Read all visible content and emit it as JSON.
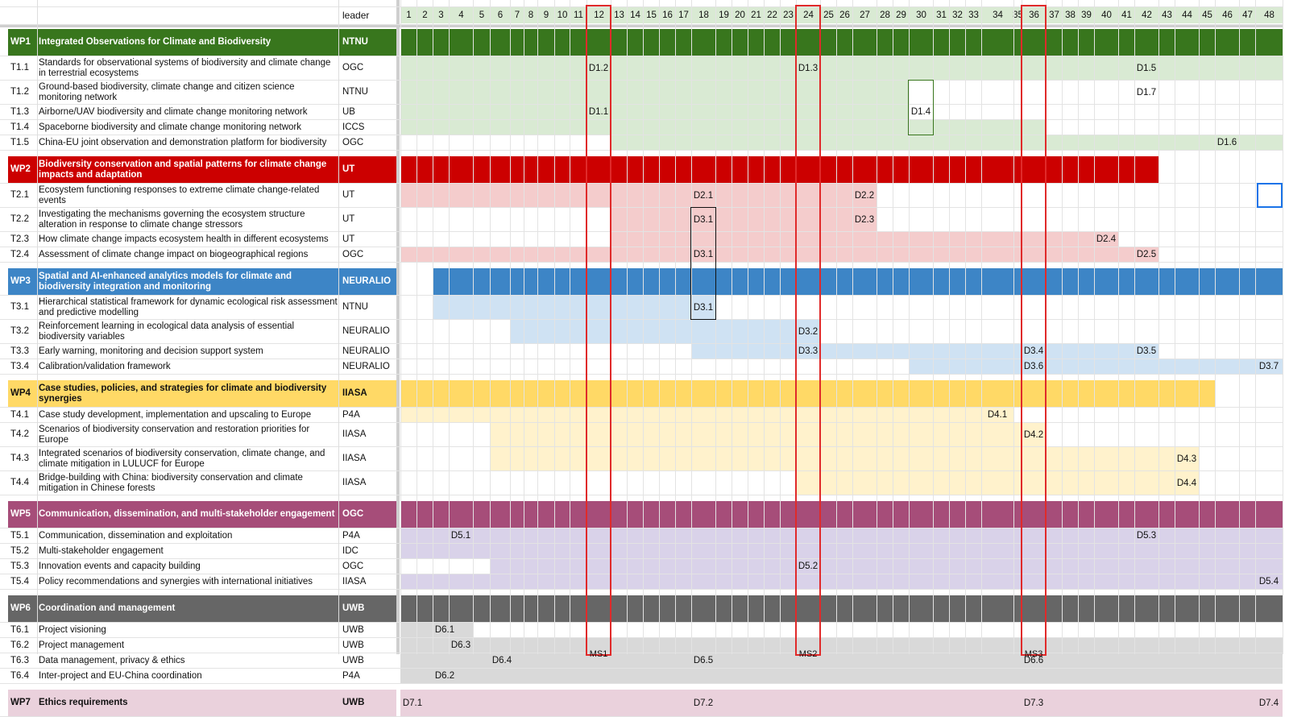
{
  "header": {
    "leader_label": "leader"
  },
  "months": [
    1,
    2,
    3,
    4,
    5,
    6,
    7,
    8,
    9,
    10,
    11,
    12,
    13,
    14,
    15,
    16,
    17,
    18,
    19,
    20,
    21,
    22,
    23,
    24,
    25,
    26,
    27,
    28,
    29,
    30,
    31,
    32,
    33,
    34,
    35,
    36,
    37,
    38,
    39,
    40,
    41,
    42,
    43,
    44,
    45,
    46,
    47,
    48
  ],
  "colors": {
    "WP1": {
      "header": "#38761d",
      "light": "#d9ead3"
    },
    "WP2": {
      "header": "#cc0000",
      "light": "#f4cccc"
    },
    "WP3": {
      "header": "#3d85c6",
      "light": "#cfe2f3"
    },
    "WP4": {
      "header": "#ffd966",
      "light": "#fff2cc"
    },
    "WP5": {
      "header": "#a64d79",
      "light": "#d9d2e9"
    },
    "WP6": {
      "header": "#666666",
      "light": "#d9d9d9"
    },
    "WP7": {
      "header": "#ead1dc",
      "light": "#ead1dc"
    }
  },
  "workpackages": [
    {
      "code": "WP1",
      "title": "Integrated Observations for Climate and Biodiversity",
      "leader": "NTNU",
      "start": 1,
      "end": 48,
      "tasks": [
        {
          "code": "T1.1",
          "title": "Standards for observational systems of biodiversity and climate change in terrestrial ecosystems",
          "leader": "OGC",
          "start": 1,
          "end": 48,
          "deliverables": [
            {
              "id": "D1.2",
              "month": 12
            },
            {
              "id": "D1.3",
              "month": 24
            },
            {
              "id": "D1.5",
              "month": 42
            }
          ]
        },
        {
          "code": "T1.2",
          "title": "Ground-based biodiversity, climate change and citizen science monitoring network",
          "leader": "NTNU",
          "start": 1,
          "end": 29,
          "deliverables": [
            {
              "id": "D1.7",
              "month": 42
            }
          ]
        },
        {
          "code": "T1.3",
          "title": "Airborne/UAV biodiversity and climate change monitoring network",
          "leader": "UB",
          "start": 1,
          "end": 29,
          "deliverables": [
            {
              "id": "D1.1",
              "month": 12
            },
            {
              "id": "D1.4",
              "month": 30
            }
          ]
        },
        {
          "code": "T1.4",
          "title": "Spaceborne biodiversity and climate change monitoring network",
          "leader": "ICCS",
          "start": 1,
          "end": 36,
          "deliverables": []
        },
        {
          "code": "T1.5",
          "title": "China-EU joint observation and demonstration platform for biodiversity",
          "leader": "OGC",
          "start": 13,
          "end": 48,
          "deliverables": [
            {
              "id": "D1.6",
              "month": 46
            }
          ]
        }
      ]
    },
    {
      "code": "WP2",
      "title": "Biodiversity conservation and spatial patterns for climate change impacts and adaptation",
      "leader": "UT",
      "start": 1,
      "end": 42,
      "tasks": [
        {
          "code": "T2.1",
          "title": "Ecosystem functioning responses to extreme climate change-related events",
          "leader": "UT",
          "start": 1,
          "end": 27,
          "deliverables": [
            {
              "id": "D2.1",
              "month": 18
            },
            {
              "id": "D2.2",
              "month": 27
            }
          ]
        },
        {
          "code": "T2.2",
          "title": "Investigating the mechanisms governing the ecosystem structure alteration in response to climate change stressors",
          "leader": "UT",
          "start": 13,
          "end": 27,
          "deliverables": [
            {
              "id": "D3.1",
              "month": 18
            },
            {
              "id": "D2.3",
              "month": 27
            }
          ]
        },
        {
          "code": "T2.3",
          "title": "How climate change impacts ecosystem health in different ecosystems",
          "leader": "UT",
          "start": 13,
          "end": 40,
          "deliverables": [
            {
              "id": "D2.4",
              "month": 40
            }
          ]
        },
        {
          "code": "T2.4",
          "title": "Assessment of climate change impact on biogeographical regions",
          "leader": "OGC",
          "start": 1,
          "end": 42,
          "deliverables": [
            {
              "id": "D3.1",
              "month": 18
            },
            {
              "id": "D2.5",
              "month": 42
            }
          ]
        }
      ]
    },
    {
      "code": "WP3",
      "title": "Spatial and AI-enhanced analytics models for climate and biodiversity integration and monitoring",
      "leader": "NEURALIO",
      "start": 3,
      "end": 48,
      "tasks": [
        {
          "code": "T3.1",
          "title": "Hierarchical statistical framework for dynamic ecological risk assessment and predictive modelling",
          "leader": "NTNU",
          "start": 3,
          "end": 18,
          "deliverables": [
            {
              "id": "D3.1",
              "month": 18
            }
          ]
        },
        {
          "code": "T3.2",
          "title": "Reinforcement learning in ecological data analysis of essential biodiversity variables",
          "leader": "NEURALIO",
          "start": 7,
          "end": 24,
          "deliverables": [
            {
              "id": "D3.2",
              "month": 24
            }
          ]
        },
        {
          "code": "T3.3",
          "title": "Early warning, monitoring and decision support system",
          "leader": "NEURALIO",
          "start": 18,
          "end": 42,
          "deliverables": [
            {
              "id": "D3.3",
              "month": 24
            },
            {
              "id": "D3.4",
              "month": 36
            },
            {
              "id": "D3.5",
              "month": 42
            }
          ]
        },
        {
          "code": "T3.4",
          "title": "Calibration/validation framework",
          "leader": "NEURALIO",
          "start": 30,
          "end": 48,
          "deliverables": [
            {
              "id": "D3.6",
              "month": 36
            },
            {
              "id": "D3.7",
              "month": 48
            }
          ]
        }
      ]
    },
    {
      "code": "WP4",
      "title": "Case studies, policies, and strategies for climate and biodiversity synergies",
      "leader": "IIASA",
      "start": 1,
      "end": 45,
      "tasks": [
        {
          "code": "T4.1",
          "title": "Case study development, implementation and upscaling to Europe",
          "leader": "P4A",
          "start": 1,
          "end": 34,
          "deliverables": [
            {
              "id": "D4.1",
              "month": 34
            }
          ]
        },
        {
          "code": "T4.2",
          "title": "Scenarios of biodiversity conservation and restoration priorities for Europe",
          "leader": "IIASA",
          "start": 6,
          "end": 36,
          "deliverables": [
            {
              "id": "D4.2",
              "month": 36
            }
          ]
        },
        {
          "code": "T4.3",
          "title": "Integrated scenarios of biodiversity conservation, climate change, and climate mitigation in LULUCF for Europe",
          "leader": "IIASA",
          "start": 6,
          "end": 44,
          "deliverables": [
            {
              "id": "D4.3",
              "month": 44
            }
          ]
        },
        {
          "code": "T4.4",
          "title": "Bridge-building with China: biodiversity conservation and climate mitigation in Chinese forests",
          "leader": "IIASA",
          "start": 24,
          "end": 44,
          "deliverables": [
            {
              "id": "D4.4",
              "month": 44
            }
          ]
        }
      ]
    },
    {
      "code": "WP5",
      "title": "Communication, dissemination, and multi-stakeholder engagement",
      "leader": "OGC",
      "start": 1,
      "end": 48,
      "tasks": [
        {
          "code": "T5.1",
          "title": "Communication, dissemination and exploitation",
          "leader": "P4A",
          "start": 1,
          "end": 48,
          "deliverables": [
            {
              "id": "D5.1",
              "month": 4
            },
            {
              "id": "D5.3",
              "month": 42
            }
          ]
        },
        {
          "code": "T5.2",
          "title": "Multi-stakeholder engagement",
          "leader": "IDC",
          "start": 1,
          "end": 48,
          "deliverables": []
        },
        {
          "code": "T5.3",
          "title": "Innovation events and capacity building",
          "leader": "OGC",
          "start": 6,
          "end": 48,
          "deliverables": [
            {
              "id": "D5.2",
              "month": 24
            }
          ]
        },
        {
          "code": "T5.4",
          "title": "Policy recommendations and synergies with international initiatives",
          "leader": "IIASA",
          "start": 1,
          "end": 48,
          "deliverables": [
            {
              "id": "D5.4",
              "month": 48
            }
          ]
        }
      ]
    },
    {
      "code": "WP6",
      "title": "Coordination and management",
      "leader": "UWB",
      "start": 1,
      "end": 48,
      "tasks": [
        {
          "code": "T6.1",
          "title": "Project visioning",
          "leader": "UWB",
          "start": 1,
          "end": 4,
          "deliverables": [
            {
              "id": "D6.1",
              "month": 3
            }
          ]
        },
        {
          "code": "T6.2",
          "title": "Project management",
          "leader": "UWB",
          "start": 1,
          "end": 48,
          "deliverables": [
            {
              "id": "D6.3",
              "month": 4
            }
          ]
        },
        {
          "code": "T6.3",
          "title": "Data management, privacy & ethics",
          "leader": "UWB",
          "start": 1,
          "end": 48,
          "deliverables": [
            {
              "id": "D6.4",
              "month": 6
            },
            {
              "id": "D6.5",
              "month": 18
            },
            {
              "id": "D6.6",
              "month": 36
            }
          ]
        },
        {
          "code": "T6.4",
          "title": "Inter-project and EU-China coordination",
          "leader": "P4A",
          "start": 1,
          "end": 48,
          "deliverables": [
            {
              "id": "D6.2",
              "month": 3
            }
          ]
        }
      ]
    },
    {
      "code": "WP7",
      "title": "Ethics requirements",
      "leader": "UWB",
      "start": 1,
      "end": 48,
      "deliverables": [
        {
          "id": "D7.1",
          "month": 1
        },
        {
          "id": "D7.2",
          "month": 18
        },
        {
          "id": "D7.3",
          "month": 36
        },
        {
          "id": "D7.4",
          "month": 48
        }
      ],
      "tasks": []
    }
  ],
  "milestones": [
    {
      "id": "MS1",
      "month": 12
    },
    {
      "id": "MS2",
      "month": 24
    },
    {
      "id": "MS3",
      "month": 36
    }
  ]
}
